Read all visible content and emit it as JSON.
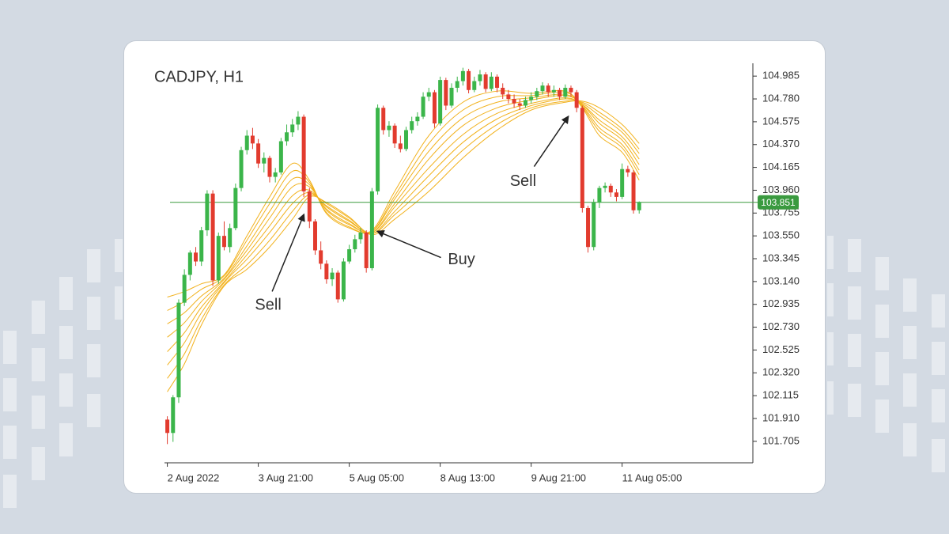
{
  "chart_data": {
    "type": "candlestick",
    "title": "CADJPY, H1",
    "up_color": "#3bb54a",
    "down_color": "#e23b2e",
    "x": [
      0,
      1,
      2,
      3,
      4,
      5,
      6,
      7,
      8,
      9,
      10,
      11,
      12,
      13,
      14,
      15,
      16,
      17,
      18,
      19,
      20,
      21,
      22,
      23,
      24,
      25,
      26,
      27,
      28,
      29,
      30,
      31,
      32,
      33,
      34,
      35,
      36,
      37,
      38,
      39,
      40,
      41,
      42,
      43,
      44,
      45,
      46,
      47,
      48,
      49,
      50,
      51,
      52,
      53,
      54,
      55,
      56,
      57,
      58,
      59,
      60,
      61,
      62,
      63,
      64,
      65,
      66,
      67,
      68,
      69,
      70,
      71,
      72,
      73,
      74,
      75,
      76,
      77,
      78,
      79,
      80,
      81,
      82,
      83
    ],
    "open": [
      101.9,
      101.78,
      102.1,
      102.95,
      103.2,
      103.4,
      103.32,
      103.6,
      103.93,
      103.15,
      103.55,
      103.45,
      103.62,
      103.98,
      104.32,
      104.45,
      104.38,
      104.2,
      104.25,
      104.08,
      104.12,
      104.4,
      104.48,
      104.55,
      104.62,
      103.95,
      103.68,
      103.42,
      103.3,
      103.16,
      103.22,
      102.98,
      103.32,
      103.43,
      103.52,
      103.58,
      103.26,
      103.95,
      104.7,
      104.5,
      104.54,
      104.38,
      104.33,
      104.5,
      104.58,
      104.62,
      104.8,
      104.84,
      104.56,
      104.95,
      104.72,
      104.88,
      104.94,
      105.03,
      104.86,
      104.94,
      105.0,
      104.87,
      104.98,
      104.88,
      104.82,
      104.78,
      104.74,
      104.72,
      104.77,
      104.8,
      104.85,
      104.9,
      104.84,
      104.86,
      104.8,
      104.88,
      104.84,
      104.7,
      103.8,
      103.45,
      103.85,
      103.98,
      104.0,
      103.94,
      103.9,
      104.15,
      104.12,
      103.78
    ],
    "high": [
      101.93,
      102.12,
      102.98,
      103.25,
      103.42,
      103.45,
      103.63,
      103.96,
      103.96,
      103.58,
      103.68,
      103.66,
      104.02,
      104.35,
      104.5,
      104.52,
      104.42,
      104.3,
      104.27,
      104.16,
      104.43,
      104.55,
      104.6,
      104.67,
      104.64,
      103.98,
      103.7,
      103.5,
      103.33,
      103.26,
      103.24,
      103.35,
      103.47,
      103.56,
      103.62,
      103.6,
      103.98,
      104.73,
      104.72,
      104.58,
      104.56,
      104.45,
      104.53,
      104.62,
      104.66,
      104.84,
      104.88,
      104.86,
      104.98,
      104.97,
      104.92,
      104.98,
      105.06,
      105.05,
      104.98,
      105.04,
      105.02,
      105.02,
      105.0,
      104.92,
      104.86,
      104.82,
      104.78,
      104.8,
      104.84,
      104.88,
      104.93,
      104.92,
      104.9,
      104.88,
      104.91,
      104.9,
      104.86,
      104.72,
      103.82,
      103.88,
      104.0,
      104.03,
      104.02,
      103.97,
      104.2,
      104.18,
      104.14,
      103.86
    ],
    "low": [
      101.68,
      101.7,
      102.05,
      102.92,
      103.15,
      103.28,
      103.28,
      103.55,
      103.1,
      103.12,
      103.42,
      103.4,
      103.6,
      103.95,
      104.28,
      104.33,
      104.16,
      104.12,
      104.03,
      104.03,
      104.1,
      104.36,
      104.44,
      104.5,
      103.9,
      103.62,
      103.38,
      103.25,
      103.12,
      103.1,
      102.95,
      102.96,
      103.3,
      103.4,
      103.48,
      103.22,
      103.24,
      103.92,
      104.46,
      104.44,
      104.34,
      104.3,
      104.31,
      104.47,
      104.54,
      104.6,
      104.76,
      104.52,
      104.54,
      104.68,
      104.7,
      104.84,
      104.9,
      104.83,
      104.84,
      104.9,
      104.84,
      104.85,
      104.84,
      104.78,
      104.74,
      104.7,
      104.68,
      104.7,
      104.74,
      104.77,
      104.82,
      104.8,
      104.8,
      104.77,
      104.78,
      104.8,
      104.66,
      103.76,
      103.4,
      103.42,
      103.8,
      103.94,
      103.9,
      103.86,
      103.88,
      104.08,
      103.75,
      103.75
    ],
    "close": [
      101.78,
      102.1,
      102.95,
      103.2,
      103.4,
      103.32,
      103.6,
      103.93,
      103.15,
      103.55,
      103.45,
      103.62,
      103.98,
      104.32,
      104.45,
      104.38,
      104.2,
      104.25,
      104.08,
      104.12,
      104.4,
      104.48,
      104.55,
      104.62,
      103.95,
      103.68,
      103.42,
      103.3,
      103.16,
      103.22,
      102.98,
      103.32,
      103.43,
      103.52,
      103.58,
      103.26,
      103.95,
      104.7,
      104.5,
      104.54,
      104.38,
      104.33,
      104.5,
      104.58,
      104.62,
      104.8,
      104.84,
      104.56,
      104.95,
      104.72,
      104.88,
      104.94,
      105.03,
      104.86,
      104.94,
      105.0,
      104.87,
      104.98,
      104.88,
      104.82,
      104.78,
      104.74,
      104.72,
      104.77,
      104.8,
      104.85,
      104.9,
      104.84,
      104.86,
      104.8,
      104.88,
      104.84,
      104.7,
      103.8,
      103.45,
      103.85,
      103.98,
      104.0,
      103.94,
      103.9,
      104.15,
      104.12,
      103.78,
      103.851
    ],
    "ribbon": {
      "color": "#f2b21e",
      "x": [
        0,
        3,
        6,
        10,
        14,
        18,
        22,
        25,
        28,
        32,
        36,
        40,
        46,
        52,
        58,
        64,
        70,
        73,
        76,
        80,
        83
      ],
      "lines": [
        [
          103.0,
          103.05,
          103.12,
          103.2,
          103.55,
          103.9,
          104.2,
          104.05,
          103.75,
          103.62,
          103.6,
          103.95,
          104.45,
          104.75,
          104.85,
          104.83,
          104.85,
          104.7,
          104.45,
          104.3,
          104.05
        ],
        [
          102.88,
          102.96,
          103.07,
          103.19,
          103.51,
          103.84,
          104.13,
          104.03,
          103.76,
          103.63,
          103.59,
          103.91,
          104.38,
          104.68,
          104.8,
          104.81,
          104.84,
          104.71,
          104.49,
          104.34,
          104.1
        ],
        [
          102.76,
          102.86,
          103.01,
          103.17,
          103.46,
          103.77,
          104.06,
          104.01,
          103.78,
          103.65,
          103.59,
          103.88,
          104.31,
          104.61,
          104.75,
          104.79,
          104.82,
          104.72,
          104.52,
          104.37,
          104.14
        ],
        [
          102.64,
          102.77,
          102.96,
          103.16,
          103.42,
          103.71,
          103.99,
          103.99,
          103.79,
          103.66,
          103.58,
          103.84,
          104.24,
          104.54,
          104.7,
          104.77,
          104.81,
          104.73,
          104.56,
          104.41,
          104.19
        ],
        [
          102.51,
          102.68,
          102.91,
          103.14,
          103.38,
          103.64,
          103.91,
          103.96,
          103.81,
          103.68,
          103.58,
          103.81,
          104.16,
          104.46,
          104.65,
          104.74,
          104.79,
          104.73,
          104.59,
          104.44,
          104.24
        ],
        [
          102.39,
          102.59,
          102.86,
          103.13,
          103.34,
          103.58,
          103.84,
          103.94,
          103.82,
          103.69,
          103.57,
          103.77,
          104.09,
          104.39,
          104.6,
          104.72,
          104.78,
          104.74,
          104.63,
          104.48,
          104.29
        ],
        [
          102.27,
          102.49,
          102.8,
          103.11,
          103.29,
          103.51,
          103.77,
          103.92,
          103.84,
          103.71,
          103.57,
          103.74,
          104.02,
          104.32,
          104.55,
          104.7,
          104.76,
          104.75,
          104.66,
          104.51,
          104.33
        ],
        [
          102.15,
          102.4,
          102.75,
          103.1,
          103.25,
          103.45,
          103.7,
          103.9,
          103.85,
          103.72,
          103.56,
          103.7,
          103.95,
          104.25,
          104.5,
          104.68,
          104.75,
          104.76,
          104.7,
          104.55,
          104.38
        ]
      ]
    },
    "price_line": {
      "value": 103.851,
      "color": "#3a9a3f"
    },
    "annotations": [
      {
        "text": "Sell",
        "x": 24,
        "y": 103.74
      },
      {
        "text": "Buy",
        "x": 37,
        "y": 103.59
      },
      {
        "text": "Sell",
        "x": 70.5,
        "y": 104.62
      }
    ],
    "xlim": [
      -0.5,
      103
    ],
    "xticks": [
      {
        "value": 0,
        "label": "2 Aug 2022"
      },
      {
        "value": 16,
        "label": "3 Aug 21:00"
      },
      {
        "value": 32,
        "label": "5 Aug 05:00"
      },
      {
        "value": 48,
        "label": "8 Aug 13:00"
      },
      {
        "value": 64,
        "label": "9 Aug 21:00"
      },
      {
        "value": 80,
        "label": "11 Aug 05:00"
      }
    ],
    "ylim": [
      101.512,
      105.1
    ],
    "yticks": [
      101.705,
      {
        "value": 101.91,
        "label": "101.910"
      },
      102.115,
      {
        "value": 102.32,
        "label": "102.320"
      },
      102.525,
      {
        "value": 102.73,
        "label": "102.730"
      },
      102.935,
      {
        "value": 103.14,
        "label": "103.140"
      },
      103.345,
      {
        "value": 103.55,
        "label": "103.550"
      },
      103.755,
      {
        "value": 103.96,
        "label": "103.960"
      },
      104.165,
      {
        "value": 104.37,
        "label": "104.370"
      },
      104.575,
      {
        "value": 104.78,
        "label": "104.780"
      },
      104.985
    ]
  }
}
